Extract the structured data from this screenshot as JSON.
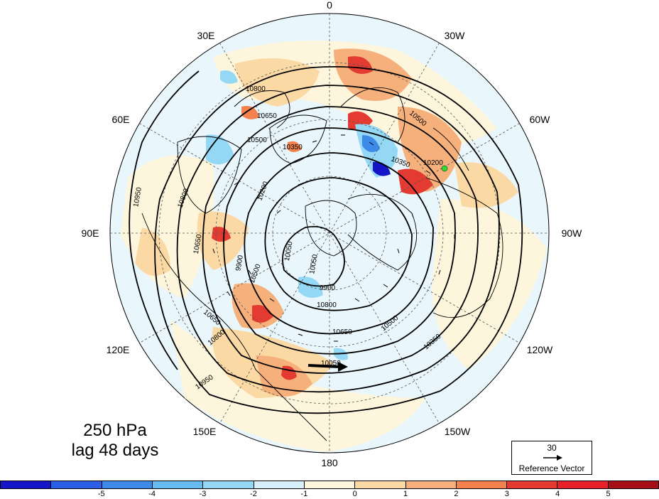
{
  "figure": {
    "level": "250 hPa",
    "lag": "lag 48 days"
  },
  "longitude_labels": [
    "0",
    "30W",
    "60W",
    "90W",
    "120W",
    "150W",
    "180",
    "150E",
    "120E",
    "90E",
    "60E",
    "30E"
  ],
  "contour_labels": [
    "10950",
    "10800",
    "10650",
    "10500",
    "10350",
    "10200",
    "10050",
    "9900",
    "10800",
    "10650",
    "10500",
    "10350",
    "10200",
    "10050",
    "9900",
    "10800",
    "10650",
    "10500",
    "10350",
    "10050",
    "10950",
    "10800",
    "10650",
    "10500"
  ],
  "reference_vector": {
    "magnitude": "30",
    "label": "Reference Vector"
  },
  "colorbar": {
    "colors": [
      "#1515c8",
      "#2b5fe6",
      "#3e8ae8",
      "#66bcf0",
      "#94d8f5",
      "#d8f0fa",
      "#fef6dc",
      "#fbd9a4",
      "#f6b07b",
      "#f4824e",
      "#e33b31",
      "#e8202a",
      "#a50f15"
    ],
    "tick_labels": [
      "-5",
      "-4",
      "-3",
      "-2",
      "-1",
      "0",
      "1",
      "2",
      "3",
      "4",
      "5"
    ]
  },
  "marker_color": "#33dd33"
}
